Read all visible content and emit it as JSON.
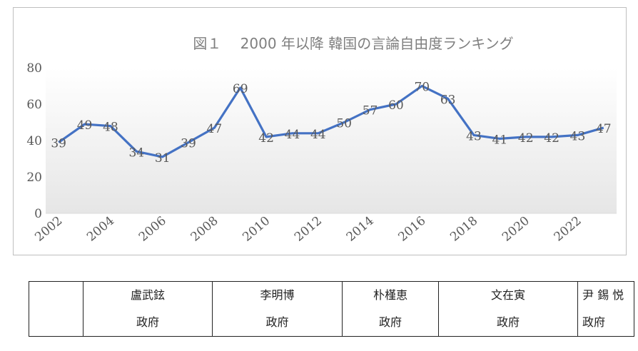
{
  "chart_data": {
    "type": "line",
    "title": "図１　 2000 年以降 韓国の言論自由度ランキング",
    "x": [
      2002,
      2003,
      2004,
      2005,
      2006,
      2007,
      2008,
      2009,
      2010,
      2011,
      2012,
      2013,
      2014,
      2015,
      2016,
      2017,
      2018,
      2019,
      2020,
      2021,
      2022,
      2023
    ],
    "x_tick_labels": [
      "2002",
      "2004",
      "2006",
      "2008",
      "2010",
      "2012",
      "2014",
      "2016",
      "2018",
      "2020",
      "2022"
    ],
    "y_tick_labels": [
      "0",
      "20",
      "40",
      "60",
      "80"
    ],
    "ylim": [
      0,
      80
    ],
    "series": [
      {
        "values": [
          39,
          49,
          48,
          34,
          31,
          39,
          47,
          69,
          42,
          44,
          44,
          50,
          57,
          60,
          70,
          63,
          43,
          41,
          42,
          42,
          43,
          47
        ],
        "color": "#4472c4"
      }
    ],
    "data_labels": true,
    "grid": false,
    "legend": "none"
  },
  "governments": [
    {
      "col1": "",
      "col2": ""
    },
    {
      "col1": "盧武鉉",
      "col2": "政府"
    },
    {
      "col1": "李明博",
      "col2": "政府"
    },
    {
      "col1": "朴槿恵",
      "col2": "政府"
    },
    {
      "col1": "文在寅",
      "col2": "政府"
    },
    {
      "col1": "尹 錫 悦",
      "col2": "政府"
    }
  ]
}
